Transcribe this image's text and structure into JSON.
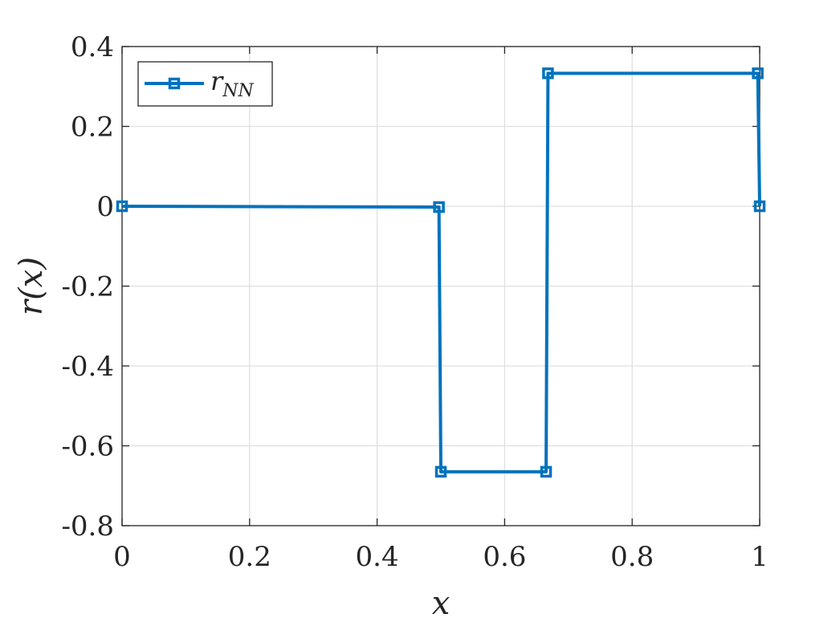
{
  "chart_data": {
    "type": "line",
    "title": "",
    "xlabel": "x",
    "ylabel": "r(x)",
    "xlim": [
      0,
      1
    ],
    "ylim": [
      -0.8,
      0.4
    ],
    "grid": true,
    "legend_position": "top-left",
    "x_ticks": [
      0,
      0.2,
      0.4,
      0.6,
      0.8,
      1
    ],
    "x_tick_labels": [
      "0",
      "0.2",
      "0.4",
      "0.6",
      "0.8",
      "1"
    ],
    "y_ticks": [
      -0.8,
      -0.6,
      -0.4,
      -0.2,
      0,
      0.2,
      0.4
    ],
    "y_tick_labels": [
      "-0.8",
      "-0.6",
      "-0.4",
      "-0.2",
      "0",
      "0.2",
      "0.4"
    ],
    "series": [
      {
        "name": "r_NN",
        "name_base": "r",
        "name_sub": "NN",
        "color": "#0072BD",
        "marker": "square",
        "x": [
          0,
          0.497,
          0.5,
          0.665,
          0.668,
          0.997,
          1.0
        ],
        "y": [
          0,
          -0.002,
          -0.665,
          -0.665,
          0.333,
          0.333,
          0
        ]
      }
    ]
  }
}
